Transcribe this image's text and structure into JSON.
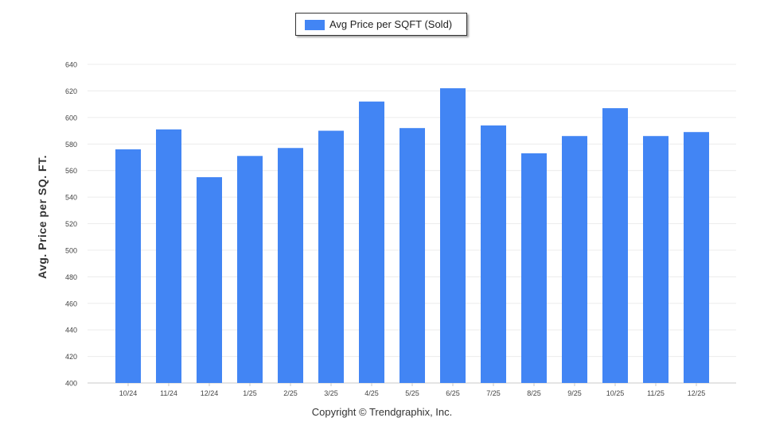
{
  "chart_data": {
    "type": "bar",
    "categories": [
      "10/24",
      "11/24",
      "12/24",
      "1/25",
      "2/25",
      "3/25",
      "4/25",
      "5/25",
      "6/25",
      "7/25",
      "8/25",
      "9/25",
      "10/25",
      "11/25",
      "12/25"
    ],
    "series": [
      {
        "name": "Avg Price per SQFT (Sold)",
        "values": [
          576,
          591,
          555,
          571,
          577,
          590,
          612,
          592,
          622,
          594,
          573,
          586,
          607,
          586,
          589
        ],
        "color": "#4285f4"
      }
    ],
    "ylabel": "Avg. Price per SQ. FT.",
    "xlabel": "",
    "title": "",
    "ylim": [
      400,
      640
    ],
    "yticks": [
      400,
      420,
      440,
      460,
      480,
      500,
      520,
      540,
      560,
      580,
      600,
      620,
      640
    ],
    "grid": true,
    "legend_position": "top-center"
  },
  "footer": {
    "copyright": "Copyright © Trendgraphix, Inc."
  }
}
